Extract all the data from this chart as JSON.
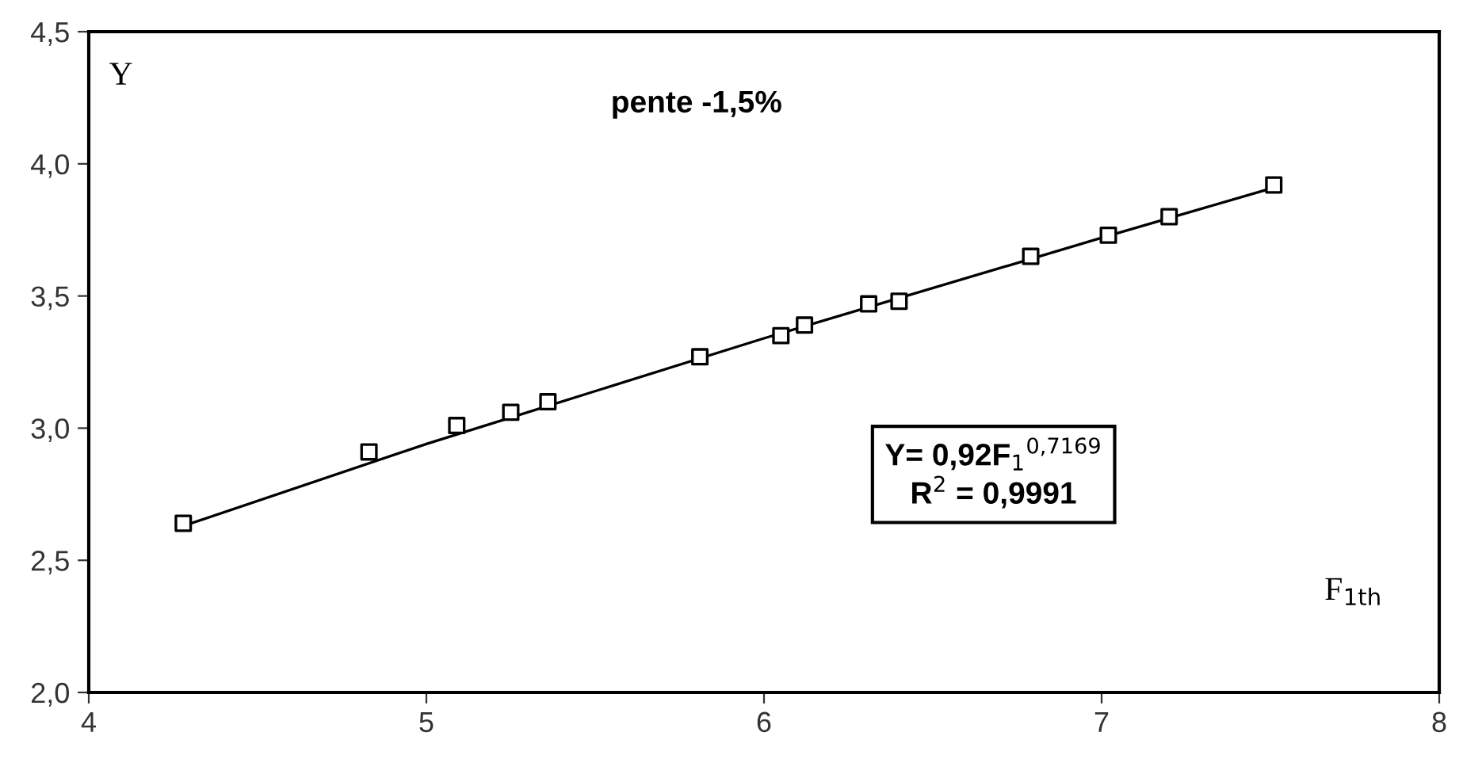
{
  "chart_data": {
    "type": "scatter",
    "xlabel": "F$_{1th}$",
    "ylabel": "Y",
    "annotations": [
      "pente -1,5%",
      "Y= 0,92F$_{1}$$^{0,7169}$\nR$^{2}$ = 0,9991"
    ],
    "series": [
      {
        "color": "#000000",
        "marker": "square",
        "x": [
          4.28,
          4.83,
          5.09,
          5.25,
          5.36,
          5.81,
          6.05,
          6.12,
          6.31,
          6.4,
          6.79,
          7.02,
          7.2,
          7.51
        ],
        "values": [
          2.64,
          2.91,
          3.01,
          3.06,
          3.1,
          3.27,
          3.35,
          3.39,
          3.47,
          3.48,
          3.65,
          3.73,
          3.8,
          3.92
        ]
      },
      {
        "type": "line",
        "color": "#000000",
        "marker": "none",
        "line_style": "solid",
        "x": [
          4.28,
          5.0,
          6.0,
          7.0,
          7.51
        ],
        "values": [
          2.63,
          2.94,
          3.34,
          3.72,
          3.91
        ]
      }
    ],
    "xlim": [
      4,
      8
    ],
    "xticks": [
      4,
      5,
      6,
      7,
      8
    ],
    "ylim": [
      2.0,
      4.5
    ],
    "yticks": [
      {
        "value": 2.0,
        "label": "2,0"
      },
      {
        "value": 2.5,
        "label": "2,5"
      },
      {
        "value": 3.0,
        "label": "3,0"
      },
      {
        "value": 3.5,
        "label": "3,5"
      },
      {
        "value": 4.0,
        "label": "4,0"
      },
      {
        "value": 4.5,
        "label": "4,5"
      }
    ],
    "grid": false,
    "legend": false
  }
}
